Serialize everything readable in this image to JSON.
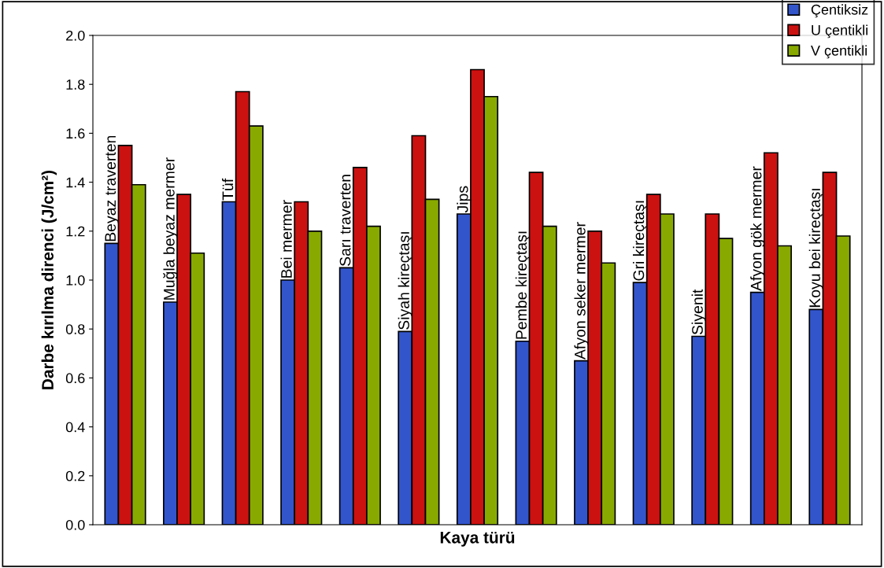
{
  "chart_data": {
    "type": "bar",
    "xlabel": "Kaya türü",
    "ylabel": "Darbe kırılma direnci (J/cm²)",
    "categories": [
      "Beyaz traverten",
      "Muğla beyaz mermer",
      "Tüf",
      "Bei mermer",
      "Sarı traverten",
      "Siyah kireçtaşı",
      "Jips",
      "Pembe kireçtaşı",
      "Afyon seker mermer",
      "Gri kireçtaşı",
      "Siyenit",
      "Afyon gök mermer",
      "Koyu bei kireçtaşı"
    ],
    "series": [
      {
        "name": "Çentiksiz",
        "color": "#3355cc",
        "values": [
          1.15,
          0.91,
          1.32,
          1.0,
          1.05,
          0.79,
          1.27,
          0.75,
          0.67,
          0.99,
          0.77,
          0.95,
          0.88
        ]
      },
      {
        "name": "U çentikli",
        "color": "#cc1111",
        "values": [
          1.55,
          1.35,
          1.77,
          1.32,
          1.46,
          1.59,
          1.86,
          1.44,
          1.2,
          1.35,
          1.27,
          1.52,
          1.44
        ]
      },
      {
        "name": "V çentikli",
        "color": "#88aa00",
        "values": [
          1.39,
          1.11,
          1.63,
          1.2,
          1.22,
          1.33,
          1.75,
          1.22,
          1.07,
          1.27,
          1.17,
          1.14,
          1.18
        ]
      }
    ],
    "ylim": [
      0,
      2.0
    ],
    "yticks": [
      {
        "value": 0,
        "label": "0.0"
      },
      {
        "value": 0.2,
        "label": "0.2"
      },
      {
        "value": 0.4,
        "label": "0.4"
      },
      {
        "value": 0.6,
        "label": "0.6"
      },
      {
        "value": 0.8,
        "label": "0.8"
      },
      {
        "value": 1.0,
        "label": "1.0"
      },
      {
        "value": 1.2,
        "label": "1.2"
      },
      {
        "value": 1.4,
        "label": "1.4"
      },
      {
        "value": 1.6,
        "label": "1.6"
      },
      {
        "value": 1.8,
        "label": "1.8"
      },
      {
        "value": 2.0,
        "label": "2.0"
      }
    ],
    "grid": false,
    "legend": "top right"
  }
}
